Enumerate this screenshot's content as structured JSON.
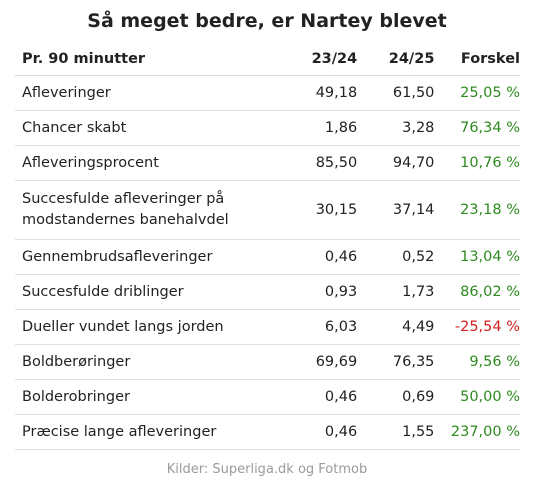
{
  "title": "Så meget bedre, er Nartey blevet",
  "table": {
    "headers": [
      "Pr. 90 minutter",
      "23/24",
      "24/25",
      "Forskel"
    ],
    "rows": [
      {
        "label": "Afleveringer",
        "v1": "49,18",
        "v2": "61,50",
        "diff": "25,05 %",
        "sign": "pos"
      },
      {
        "label": "Chancer skabt",
        "v1": "1,86",
        "v2": "3,28",
        "diff": "76,34 %",
        "sign": "pos"
      },
      {
        "label": "Afleveringsprocent",
        "v1": "85,50",
        "v2": "94,70",
        "diff": "10,76 %",
        "sign": "pos"
      },
      {
        "label": "Succesfulde afleveringer på modstandernes banehalvdel",
        "v1": "30,15",
        "v2": "37,14",
        "diff": "23,18 %",
        "sign": "pos"
      },
      {
        "label": "Gennembrudsafleveringer",
        "v1": "0,46",
        "v2": "0,52",
        "diff": "13,04 %",
        "sign": "pos"
      },
      {
        "label": "Succesfulde driblinger",
        "v1": "0,93",
        "v2": "1,73",
        "diff": "86,02 %",
        "sign": "pos"
      },
      {
        "label": "Dueller vundet langs jorden",
        "v1": "6,03",
        "v2": "4,49",
        "diff": "-25,54 %",
        "sign": "neg"
      },
      {
        "label": "Boldberøringer",
        "v1": "69,69",
        "v2": "76,35",
        "diff": "9,56 %",
        "sign": "pos"
      },
      {
        "label": "Bolderobringer",
        "v1": "0,46",
        "v2": "0,69",
        "diff": "50,00 %",
        "sign": "pos"
      },
      {
        "label": "Præcise lange afleveringer",
        "v1": "0,46",
        "v2": "1,55",
        "diff": "237,00 %",
        "sign": "pos"
      }
    ]
  },
  "source": "Kilder: Superliga.dk og Fotmob",
  "colors": {
    "positive": "#2e8b1f",
    "negative": "#d32020"
  }
}
